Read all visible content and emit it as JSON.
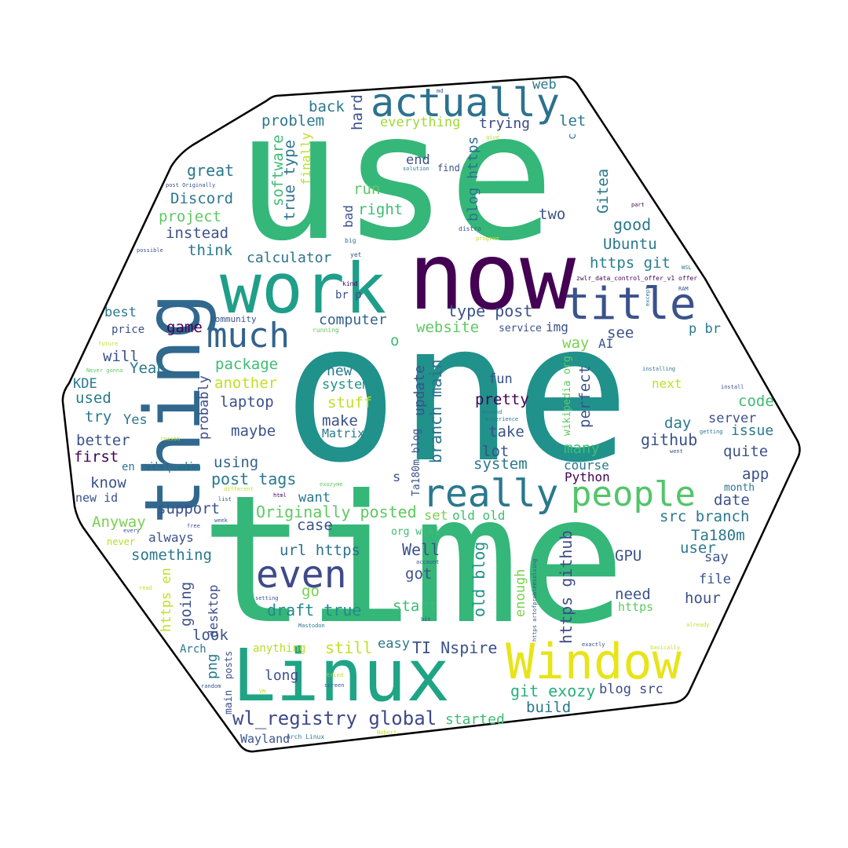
{
  "words": {
    "use": "use",
    "one": "one",
    "time": "time",
    "now": "now",
    "thing": "thing",
    "work": "work",
    "linux": "Linux",
    "window": "Window",
    "actually": "actually",
    "title": "title",
    "really": "really",
    "people": "people",
    "even": "even",
    "much": "much",
    "wl_registry": "wl_registry global",
    "git_exozy": "git exozy",
    "originally_posted": "Originally posted",
    "draft_true": "draft true",
    "ti_nspire": "TI Nspire",
    "post_tags": "post tags",
    "type_post": "type post",
    "src_branch": "src branch",
    "https_github": "https github",
    "old_blog": "old blog",
    "branch_main": "branch main",
    "blog_https": "blog https",
    "https_git": "https git",
    "url_https": "url https",
    "true_type": "true type",
    "software": "software",
    "calculator": "calculator",
    "computer": "computer",
    "website": "website",
    "package": "package",
    "another": "another",
    "laptop": "laptop",
    "maybe": "maybe",
    "using": "using",
    "support": "support",
    "something": "something",
    "going": "going",
    "desktop": "desktop",
    "look": "look",
    "anything": "anything",
    "still": "still",
    "easy": "easy",
    "long": "long",
    "started": "started",
    "build": "build",
    "blog_src": "blog src",
    "wayland": "Wayland",
    "arch_linux": "Arch Linux",
    "bobert": "Bobert",
    "problem": "problem",
    "back": "back",
    "hard": "hard",
    "everything": "everything",
    "trying": "trying",
    "let": "let",
    "web": "web",
    "end": "end",
    "find": "find",
    "run": "run",
    "right": "right",
    "bad": "bad",
    "two": "two",
    "good": "good",
    "gitea": "Gitea",
    "ubuntu": "Ubuntu",
    "great": "great",
    "discord": "Discord",
    "project": "project",
    "instead": "instead",
    "think": "think",
    "best": "best",
    "price": "price",
    "game": "game",
    "will": "will",
    "yeah": "Yeah",
    "kde": "KDE",
    "used": "used",
    "try": "try",
    "yes": "Yes",
    "better": "better",
    "first": "first",
    "know": "know",
    "en_wikipedia": "en wikipedia",
    "new_id": "new id",
    "anyway": "Anyway",
    "never": "never",
    "always": "always",
    "new": "new",
    "systemd": "systemd",
    "stuff": "stuff",
    "make": "make",
    "matrix": "Matrix",
    "probably": "probably",
    "update": "update",
    "ta180m_blog": "Ta180m blog",
    "fun": "fun",
    "pretty": "pretty",
    "take": "take",
    "lot": "lot",
    "system": "system",
    "many": "many",
    "course": "course",
    "python": "Python",
    "perfect": "perfect",
    "way": "way",
    "ai": "AI",
    "see": "see",
    "img": "img",
    "service": "service",
    "p_br": "p br",
    "next": "next",
    "code": "code",
    "server": "server",
    "issue": "issue",
    "day": "day",
    "github": "github",
    "quite": "quite",
    "app": "app",
    "month": "month",
    "date": "date",
    "ta180m": "Ta180m",
    "user": "user",
    "say": "say",
    "gpu": "GPU",
    "file": "file",
    "need": "need",
    "hour": "hour",
    "https": "https",
    "well": "Well",
    "got": "got",
    "go": "go",
    "start": "start",
    "enough": "enough",
    "set": "set",
    "old_old": "old old",
    "org_wiki": "org wiki",
    "case": "case",
    "want": "want",
    "s": "s",
    "o": "o",
    "https_en": "https en",
    "png": "png",
    "arch": "Arch",
    "posts": "posts",
    "main": "main",
    "br_p": "br p",
    "community": "community",
    "running": "running",
    "kind": "kind",
    "yet": "yet",
    "big": "big",
    "distro": "distro",
    "program": "program",
    "part": "part",
    "solution": "solution",
    "md": "md",
    "give": "give",
    "c": "c",
    "finally": "finally",
    "post_originally": "post Originally",
    "possible": "possible",
    "zwlr_offer": "zwlr_data_control_offer_v1 offer",
    "wsl": "WSL",
    "ram": "RAM",
    "except": "except",
    "future": "future",
    "never_gonna": "Never gonna",
    "reason": "reason",
    "around": "around",
    "experience": "experience",
    "installing": "installing",
    "install": "install",
    "getting": "getting",
    "went": "went",
    "different": "different",
    "exozyme": "exozyme",
    "list": "list",
    "html": "html",
    "free": "free",
    "week": "week",
    "every": "every",
    "account": "account",
    "read": "read",
    "setting": "setting",
    "mastodon": "Mastodon",
    "bit": "bit",
    "https_aops": "https artofproblemsolving",
    "exactly": "exactly",
    "already": "already",
    "basically": "basically",
    "wikipedia_org": "wikipedia org",
    "tried": "tried",
    "screen": "screen",
    "random": "random",
    "vm": "VM"
  }
}
